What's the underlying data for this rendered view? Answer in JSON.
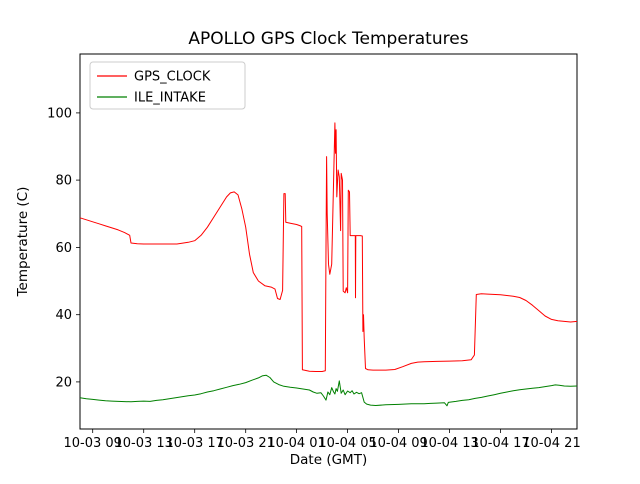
{
  "figure": {
    "title": "APOLLO GPS Clock Temperatures",
    "xlabel": "Date (GMT)",
    "ylabel": "Temperature (C)"
  },
  "legend": {
    "position": "upper left",
    "entries": [
      {
        "label": "GPS_CLOCK",
        "color": "#ff0000"
      },
      {
        "label": "ILE_INTAKE",
        "color": "#008000"
      }
    ]
  },
  "chart_data": {
    "type": "line",
    "title": "APOLLO GPS Clock Temperatures",
    "xlabel": "Date (GMT)",
    "ylabel": "Temperature (C)",
    "grid": false,
    "legend_position": "upper left",
    "x_unit": "hours since 10-03 08:00 GMT",
    "xlim": [
      0,
      39
    ],
    "ylim": [
      6,
      117.5
    ],
    "yticks": [
      20,
      40,
      60,
      80,
      100
    ],
    "xticks": [
      {
        "pos": 1,
        "label": "10-03 09"
      },
      {
        "pos": 5,
        "label": "10-03 13"
      },
      {
        "pos": 9,
        "label": "10-03 17"
      },
      {
        "pos": 13,
        "label": "10-03 21"
      },
      {
        "pos": 17,
        "label": "10-04 01"
      },
      {
        "pos": 21,
        "label": "10-04 05"
      },
      {
        "pos": 25,
        "label": "10-04 09"
      },
      {
        "pos": 29,
        "label": "10-04 13"
      },
      {
        "pos": 33,
        "label": "10-04 17"
      },
      {
        "pos": 37,
        "label": "10-04 21"
      }
    ],
    "series": [
      {
        "name": "GPS_CLOCK",
        "color": "#ff0000",
        "points": [
          [
            0,
            68.8
          ],
          [
            0.5,
            68.2
          ],
          [
            1,
            67.6
          ],
          [
            1.5,
            67
          ],
          [
            2,
            66.4
          ],
          [
            2.5,
            65.8
          ],
          [
            3,
            65.2
          ],
          [
            3.5,
            64.4
          ],
          [
            3.9,
            63.6
          ],
          [
            4,
            61.3
          ],
          [
            4.5,
            61.1
          ],
          [
            5,
            61
          ],
          [
            6,
            61
          ],
          [
            7,
            61
          ],
          [
            7.6,
            61
          ],
          [
            8,
            61.2
          ],
          [
            8.5,
            61.5
          ],
          [
            9,
            62
          ],
          [
            9.5,
            63.6
          ],
          [
            10,
            66
          ],
          [
            10.5,
            69
          ],
          [
            11,
            72
          ],
          [
            11.5,
            75
          ],
          [
            11.8,
            76.2
          ],
          [
            12.1,
            76.5
          ],
          [
            12.4,
            75.6
          ],
          [
            12.7,
            71.5
          ],
          [
            13,
            66
          ],
          [
            13.3,
            58
          ],
          [
            13.6,
            52.5
          ],
          [
            14,
            50
          ],
          [
            14.5,
            48.6
          ],
          [
            15,
            48.2
          ],
          [
            15.3,
            47.6
          ],
          [
            15.5,
            44.8
          ],
          [
            15.7,
            44.5
          ],
          [
            15.9,
            47.2
          ],
          [
            16,
            76
          ],
          [
            16.1,
            76
          ],
          [
            16.15,
            67.5
          ],
          [
            16.5,
            67.2
          ],
          [
            17,
            66.8
          ],
          [
            17.3,
            66.4
          ],
          [
            17.4,
            66.2
          ],
          [
            17.45,
            23.6
          ],
          [
            18,
            23.2
          ],
          [
            18.5,
            23.1
          ],
          [
            19,
            23.1
          ],
          [
            19.25,
            23.3
          ],
          [
            19.3,
            60
          ],
          [
            19.35,
            87
          ],
          [
            19.4,
            70
          ],
          [
            19.5,
            55
          ],
          [
            19.6,
            52
          ],
          [
            19.75,
            55
          ],
          [
            19.9,
            80
          ],
          [
            20,
            97
          ],
          [
            20.05,
            88
          ],
          [
            20.1,
            95
          ],
          [
            20.15,
            75
          ],
          [
            20.25,
            83
          ],
          [
            20.35,
            81
          ],
          [
            20.45,
            65
          ],
          [
            20.5,
            82
          ],
          [
            20.6,
            80
          ],
          [
            20.65,
            47
          ],
          [
            20.8,
            46.5
          ],
          [
            20.9,
            48
          ],
          [
            21,
            46.5
          ],
          [
            21.05,
            77
          ],
          [
            21.15,
            76.5
          ],
          [
            21.2,
            63.5
          ],
          [
            21.6,
            63.5
          ],
          [
            21.62,
            45
          ],
          [
            21.64,
            63.5
          ],
          [
            22,
            63.5
          ],
          [
            22.15,
            63.4
          ],
          [
            22.2,
            35
          ],
          [
            22.25,
            40
          ],
          [
            22.3,
            33
          ],
          [
            22.4,
            24
          ],
          [
            22.6,
            23.6
          ],
          [
            23,
            23.5
          ],
          [
            24,
            23.5
          ],
          [
            24.7,
            23.7
          ],
          [
            25.3,
            24.5
          ],
          [
            26,
            25.5
          ],
          [
            26.5,
            25.9
          ],
          [
            27,
            26
          ],
          [
            28,
            26.1
          ],
          [
            29,
            26.2
          ],
          [
            30,
            26.3
          ],
          [
            30.7,
            26.6
          ],
          [
            30.95,
            28
          ],
          [
            31.1,
            46
          ],
          [
            31.5,
            46.2
          ],
          [
            32,
            46.1
          ],
          [
            33,
            45.9
          ],
          [
            34,
            45.5
          ],
          [
            34.5,
            45.1
          ],
          [
            35,
            44.2
          ],
          [
            35.5,
            42.8
          ],
          [
            36,
            41.2
          ],
          [
            36.5,
            39.6
          ],
          [
            37,
            38.6
          ],
          [
            37.5,
            38.2
          ],
          [
            38,
            38
          ],
          [
            38.5,
            37.8
          ],
          [
            39,
            38
          ]
        ]
      },
      {
        "name": "ILE_INTAKE",
        "color": "#008000",
        "points": [
          [
            0,
            15.3
          ],
          [
            0.5,
            15
          ],
          [
            1,
            14.8
          ],
          [
            1.5,
            14.6
          ],
          [
            2,
            14.4
          ],
          [
            2.5,
            14.3
          ],
          [
            3,
            14.2
          ],
          [
            4,
            14.1
          ],
          [
            4.5,
            14.2
          ],
          [
            5,
            14.3
          ],
          [
            5.5,
            14.2
          ],
          [
            6,
            14.5
          ],
          [
            6.5,
            14.7
          ],
          [
            7,
            15
          ],
          [
            7.5,
            15.3
          ],
          [
            8,
            15.6
          ],
          [
            8.5,
            15.9
          ],
          [
            9,
            16.1
          ],
          [
            9.5,
            16.5
          ],
          [
            10,
            17
          ],
          [
            10.5,
            17.4
          ],
          [
            11,
            17.9
          ],
          [
            11.5,
            18.4
          ],
          [
            12,
            18.9
          ],
          [
            12.5,
            19.3
          ],
          [
            13,
            19.8
          ],
          [
            13.5,
            20.5
          ],
          [
            14,
            21.2
          ],
          [
            14.3,
            21.8
          ],
          [
            14.6,
            22
          ],
          [
            14.9,
            21.3
          ],
          [
            15.2,
            20
          ],
          [
            15.6,
            19.2
          ],
          [
            16,
            18.7
          ],
          [
            16.5,
            18.4
          ],
          [
            17,
            18.2
          ],
          [
            17.5,
            17.9
          ],
          [
            18,
            17.6
          ],
          [
            18.3,
            17
          ],
          [
            18.6,
            16.6
          ],
          [
            18.9,
            16.8
          ],
          [
            19.1,
            15.8
          ],
          [
            19.3,
            14.6
          ],
          [
            19.45,
            17
          ],
          [
            19.6,
            16.2
          ],
          [
            19.75,
            18.3
          ],
          [
            19.9,
            17
          ],
          [
            20,
            16.4
          ],
          [
            20.1,
            18
          ],
          [
            20.2,
            17.2
          ],
          [
            20.35,
            20.3
          ],
          [
            20.5,
            16.6
          ],
          [
            20.65,
            17.6
          ],
          [
            20.8,
            16.2
          ],
          [
            21,
            17.3
          ],
          [
            21.2,
            16.8
          ],
          [
            21.35,
            17.4
          ],
          [
            21.5,
            16.4
          ],
          [
            21.7,
            16.9
          ],
          [
            21.9,
            16.5
          ],
          [
            22.1,
            16.8
          ],
          [
            22.3,
            14
          ],
          [
            22.5,
            13.4
          ],
          [
            22.8,
            13.1
          ],
          [
            23.2,
            13
          ],
          [
            24,
            13.2
          ],
          [
            25,
            13.3
          ],
          [
            26,
            13.5
          ],
          [
            27,
            13.5
          ],
          [
            27.5,
            13.6
          ],
          [
            28,
            13.7
          ],
          [
            28.6,
            13.8
          ],
          [
            28.8,
            12.9
          ],
          [
            28.9,
            13.9
          ],
          [
            29.5,
            14.2
          ],
          [
            30,
            14.5
          ],
          [
            30.5,
            14.7
          ],
          [
            31,
            15.1
          ],
          [
            31.5,
            15.4
          ],
          [
            32,
            15.8
          ],
          [
            32.5,
            16.2
          ],
          [
            33,
            16.6
          ],
          [
            33.5,
            17
          ],
          [
            34,
            17.4
          ],
          [
            34.5,
            17.7
          ],
          [
            35,
            17.9
          ],
          [
            35.5,
            18.1
          ],
          [
            36,
            18.3
          ],
          [
            36.5,
            18.6
          ],
          [
            37,
            18.9
          ],
          [
            37.3,
            19.1
          ],
          [
            37.6,
            19
          ],
          [
            38,
            18.8
          ],
          [
            38.5,
            18.7
          ],
          [
            39,
            18.8
          ]
        ]
      }
    ]
  }
}
